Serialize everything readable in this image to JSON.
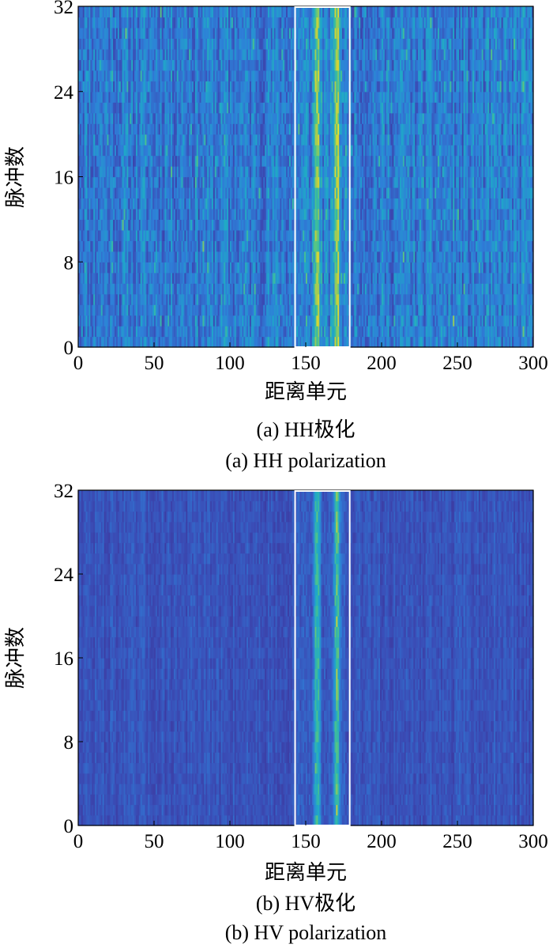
{
  "chart_data": [
    {
      "type": "heatmap",
      "xlabel": "距离单元",
      "ylabel": "脉冲数",
      "xlim": [
        0,
        300
      ],
      "ylim": [
        0,
        32
      ],
      "xticks": [
        "0",
        "50",
        "100",
        "150",
        "200",
        "250",
        "300"
      ],
      "yticks": [
        "0",
        "8",
        "16",
        "24",
        "32"
      ],
      "caption_cn": "(a) HH极化",
      "caption_en": "(a) HH polarization",
      "target_box": {
        "x_range": [
          143,
          179
        ],
        "y_range": [
          0,
          32
        ]
      },
      "colormap": [
        "#3e2a8f",
        "#3a4fb8",
        "#2e7fd8",
        "#1fa8c8",
        "#48c28f",
        "#c9d13a",
        "#f0e52a"
      ],
      "box_color": "#ffffff",
      "clutter_level": "high"
    },
    {
      "type": "heatmap",
      "xlabel": "距离单元",
      "ylabel": "脉冲数",
      "xlim": [
        0,
        300
      ],
      "ylim": [
        0,
        32
      ],
      "xticks": [
        "0",
        "50",
        "100",
        "150",
        "200",
        "250",
        "300"
      ],
      "yticks": [
        "0",
        "8",
        "16",
        "24",
        "32"
      ],
      "caption_cn": "(b) HV极化",
      "caption_en": "(b) HV polarization",
      "target_box": {
        "x_range": [
          143,
          179
        ],
        "y_range": [
          0,
          32
        ]
      },
      "colormap": [
        "#3e2a8f",
        "#3a4fb8",
        "#2e7fd8",
        "#1fa8c8",
        "#48c28f",
        "#c9d13a",
        "#f0e52a"
      ],
      "box_color": "#ffffff",
      "clutter_level": "low"
    }
  ]
}
